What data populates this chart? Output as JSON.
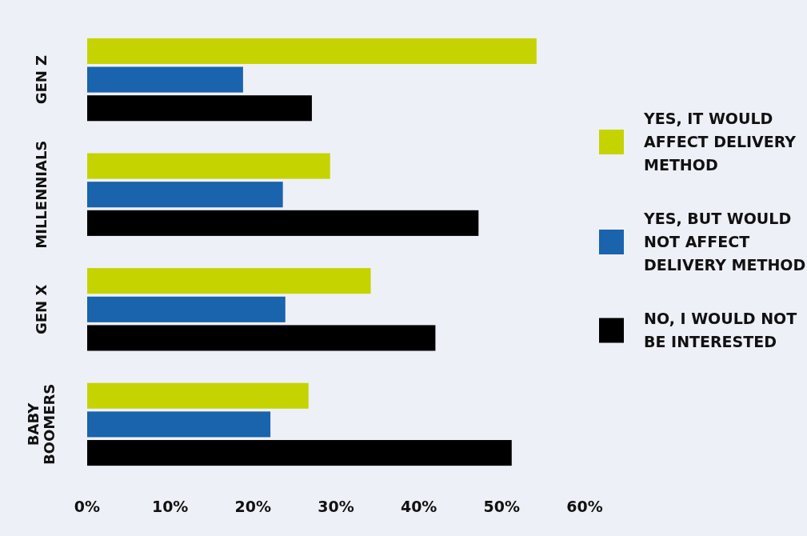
{
  "chart_data": {
    "type": "bar",
    "orientation": "horizontal",
    "categories": [
      "GEN Z",
      "MILLENNIALS",
      "GEN X",
      "BABY BOOMERS"
    ],
    "series": [
      {
        "name": "YES, IT WOULD AFFECT DELIVERY METHOD",
        "color": "#c5d400",
        "values": [
          54.2,
          29.3,
          34.2,
          26.7
        ]
      },
      {
        "name": "YES, BUT WOULD NOT AFFECT DELIVERY METHOD",
        "color": "#1a63ad",
        "values": [
          18.8,
          23.6,
          23.9,
          22.1
        ]
      },
      {
        "name": "NO, I WOULD NOT BE INTERESTED",
        "color": "#000000",
        "values": [
          27.1,
          47.2,
          42.0,
          51.2
        ]
      }
    ],
    "xlim": [
      0,
      60
    ],
    "xticks": [
      {
        "value": 0,
        "label": "0%"
      },
      {
        "value": 10,
        "label": "10%"
      },
      {
        "value": 20,
        "label": "20%"
      },
      {
        "value": 30,
        "label": "30%"
      },
      {
        "value": 40,
        "label": "40%"
      },
      {
        "value": 50,
        "label": "50%"
      },
      {
        "value": 60,
        "label": "60%"
      }
    ],
    "legend": "right",
    "grid": false
  }
}
